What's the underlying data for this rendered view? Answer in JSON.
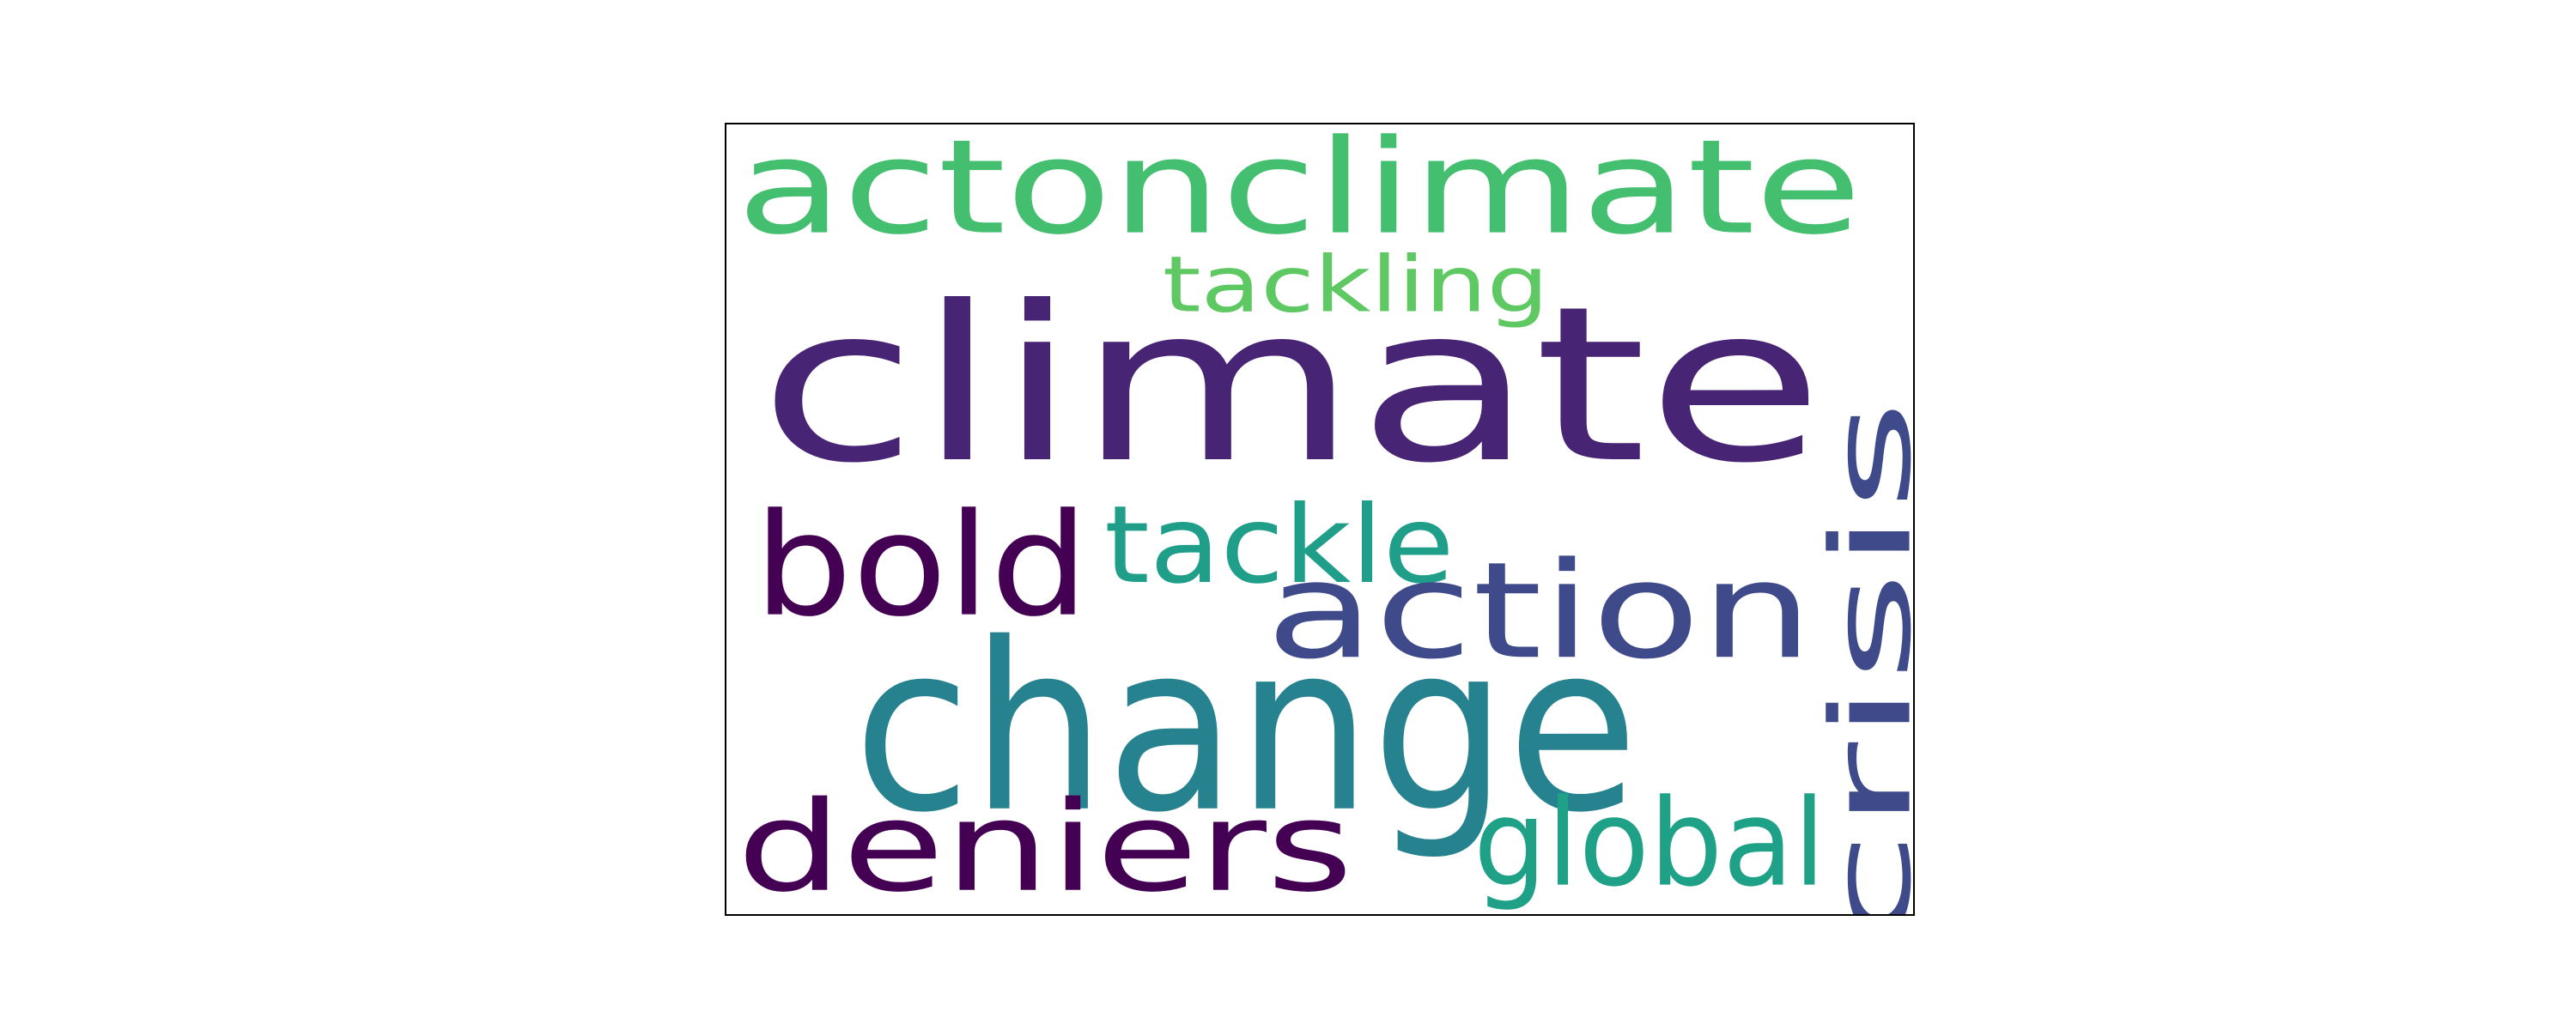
{
  "words": [
    {
      "text": "actonclimate",
      "color": "#44bf70"
    },
    {
      "text": "tackling",
      "color": "#5ec962"
    },
    {
      "text": "climate",
      "color": "#482475"
    },
    {
      "text": "bold",
      "color": "#440154"
    },
    {
      "text": "tackle",
      "color": "#1f9e89"
    },
    {
      "text": "action",
      "color": "#3e4a89"
    },
    {
      "text": "change",
      "color": "#26828e"
    },
    {
      "text": "crisis",
      "color": "#3e4a89"
    },
    {
      "text": "deniers",
      "color": "#440154"
    },
    {
      "text": "global",
      "color": "#1fa187"
    }
  ]
}
